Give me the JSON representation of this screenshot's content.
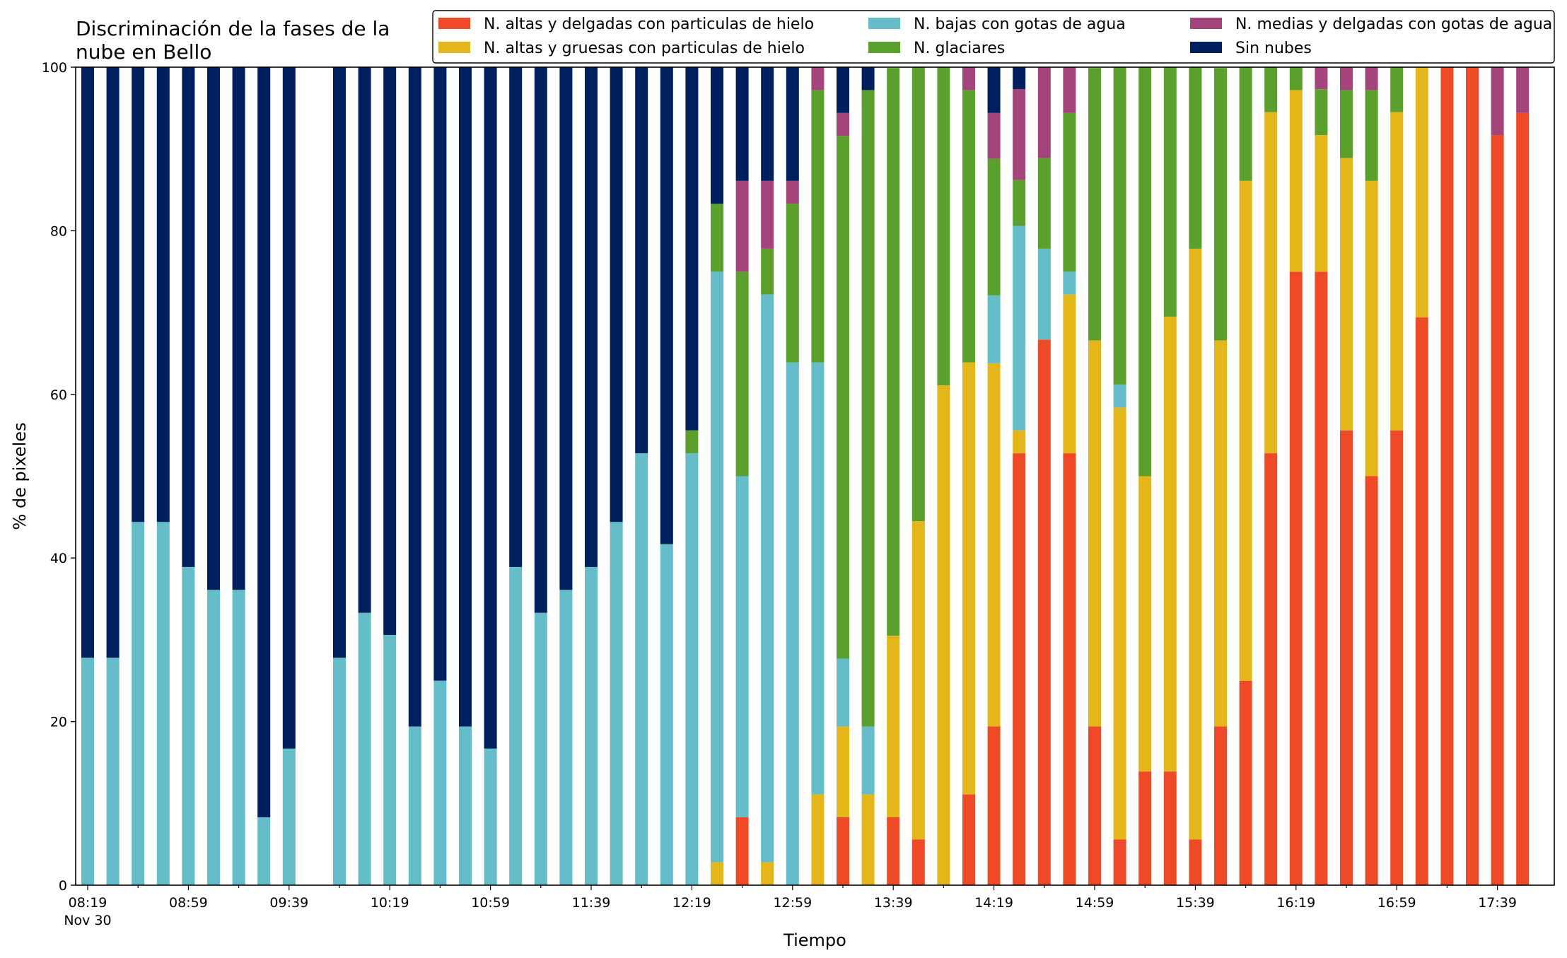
{
  "chart_data": {
    "type": "bar",
    "stacked": true,
    "title_lines": [
      "Discriminación de la fases de la",
      "nube en Bello"
    ],
    "xlabel": "Tiempo",
    "ylabel": "% de pixeles",
    "ylim": [
      0,
      100
    ],
    "yticks": [
      0,
      20,
      40,
      60,
      80,
      100
    ],
    "grid": false,
    "legend_placement": "top-right",
    "x_start": "08:19",
    "x_step_minutes": 10,
    "x_count": 58,
    "x_major_labels": [
      {
        "index": 0,
        "label": "08:19",
        "sublabel": "Nov 30"
      },
      {
        "index": 4,
        "label": "08:59"
      },
      {
        "index": 8,
        "label": "09:39"
      },
      {
        "index": 12,
        "label": "10:19"
      },
      {
        "index": 16,
        "label": "10:59"
      },
      {
        "index": 20,
        "label": "11:39"
      },
      {
        "index": 24,
        "label": "12:19"
      },
      {
        "index": 28,
        "label": "12:59"
      },
      {
        "index": 32,
        "label": "13:39"
      },
      {
        "index": 36,
        "label": "14:19"
      },
      {
        "index": 40,
        "label": "14:59"
      },
      {
        "index": 44,
        "label": "15:39"
      },
      {
        "index": 48,
        "label": "16:19"
      },
      {
        "index": 52,
        "label": "16:59"
      },
      {
        "index": 56,
        "label": "17:39"
      }
    ],
    "bar_indices": [
      0,
      1,
      2,
      3,
      4,
      5,
      6,
      7,
      8,
      10,
      11,
      12,
      13,
      14,
      15,
      16,
      17,
      18,
      19,
      20,
      21,
      22,
      23,
      24,
      25,
      26,
      27,
      28,
      29,
      30,
      31,
      32,
      33,
      34,
      35,
      36,
      37,
      38,
      39,
      40,
      41,
      42,
      43,
      44,
      45,
      46,
      47,
      48,
      49,
      50,
      51,
      52,
      53,
      54,
      55,
      56,
      57
    ],
    "series": [
      {
        "name": "N. altas y delgadas con particulas de hielo",
        "color": "#ef4a28",
        "values": [
          0,
          0,
          0,
          0,
          0,
          0,
          0,
          0,
          0,
          0,
          0,
          0,
          0,
          0,
          0,
          0,
          0,
          0,
          0,
          0,
          0,
          0,
          0,
          0,
          0,
          8.3,
          0,
          0,
          0,
          8.3,
          0,
          8.3,
          5.6,
          0,
          11.1,
          19.4,
          52.8,
          66.7,
          52.8,
          19.4,
          5.6,
          13.9,
          13.9,
          5.6,
          19.4,
          25,
          52.8,
          75,
          75,
          55.6,
          50,
          55.6,
          69.4,
          100,
          100,
          91.7,
          94.4
        ]
      },
      {
        "name": "N. altas y gruesas con particulas de hielo",
        "color": "#e4b61a",
        "values": [
          0,
          0,
          0,
          0,
          0,
          0,
          0,
          0,
          0,
          0,
          0,
          0,
          0,
          0,
          0,
          0,
          0,
          0,
          0,
          0,
          0,
          0,
          0,
          0,
          2.8,
          0,
          2.8,
          0,
          11.1,
          11.1,
          11.1,
          22.2,
          38.9,
          61.1,
          52.8,
          44.4,
          2.8,
          0,
          19.4,
          47.2,
          52.8,
          36.1,
          55.6,
          72.2,
          47.2,
          61.1,
          41.7,
          22.2,
          16.7,
          33.3,
          36.1,
          38.9,
          30.6,
          0,
          0,
          0,
          0
        ]
      },
      {
        "name": "N. bajas con gotas de agua",
        "color": "#65bdca",
        "values": [
          27.8,
          27.8,
          44.4,
          44.4,
          38.9,
          36.1,
          36.1,
          8.3,
          16.7,
          27.8,
          33.3,
          30.6,
          19.4,
          25,
          19.4,
          16.7,
          38.9,
          33.3,
          36.1,
          38.9,
          44.4,
          52.8,
          41.7,
          52.8,
          72.2,
          41.7,
          69.4,
          63.9,
          52.8,
          8.3,
          8.3,
          0,
          0,
          0,
          0,
          8.3,
          25,
          11.1,
          2.8,
          0,
          2.8,
          0,
          0,
          0,
          0,
          0,
          0,
          0,
          0,
          0,
          0,
          0,
          0,
          0,
          0,
          0,
          0
        ]
      },
      {
        "name": "N. glaciares",
        "color": "#5ba02c",
        "values": [
          0,
          0,
          0,
          0,
          0,
          0,
          0,
          0,
          0,
          0,
          0,
          0,
          0,
          0,
          0,
          0,
          0,
          0,
          0,
          0,
          0,
          0,
          0,
          2.8,
          8.3,
          25,
          5.6,
          19.4,
          33.3,
          63.9,
          77.8,
          69.4,
          55.6,
          38.9,
          33.3,
          16.7,
          5.6,
          11.1,
          19.4,
          33.3,
          38.9,
          50,
          30.6,
          22.2,
          33.3,
          13.9,
          5.6,
          2.8,
          5.6,
          8.3,
          11.1,
          5.6,
          0,
          0,
          0,
          0,
          0
        ]
      },
      {
        "name": "N. medias y delgadas con gotas de agua",
        "color": "#a4447a",
        "values": [
          0,
          0,
          0,
          0,
          0,
          0,
          0,
          0,
          0,
          0,
          0,
          0,
          0,
          0,
          0,
          0,
          0,
          0,
          0,
          0,
          0,
          0,
          0,
          0,
          0,
          11.1,
          8.3,
          2.8,
          2.8,
          2.8,
          0,
          0,
          0,
          0,
          2.8,
          5.6,
          11.1,
          11.1,
          5.6,
          0,
          0,
          0,
          0,
          0,
          0,
          0,
          0,
          0,
          2.8,
          2.8,
          2.8,
          0,
          0,
          0,
          0,
          8.3,
          5.6
        ]
      },
      {
        "name": "Sin nubes",
        "color": "#001f5f",
        "values": [
          72.2,
          72.2,
          55.6,
          55.6,
          61.1,
          63.9,
          63.9,
          91.7,
          83.3,
          72.2,
          66.7,
          69.4,
          80.6,
          75,
          80.6,
          83.3,
          61.1,
          66.7,
          63.9,
          61.1,
          55.6,
          47.2,
          58.3,
          44.4,
          16.7,
          13.9,
          13.9,
          13.9,
          0,
          5.6,
          2.8,
          0,
          0,
          0,
          0,
          5.6,
          2.8,
          0,
          0,
          0,
          0,
          0,
          0,
          0,
          0,
          0,
          0,
          0,
          0,
          0,
          0,
          0,
          0,
          0,
          0,
          0,
          0
        ]
      }
    ]
  }
}
